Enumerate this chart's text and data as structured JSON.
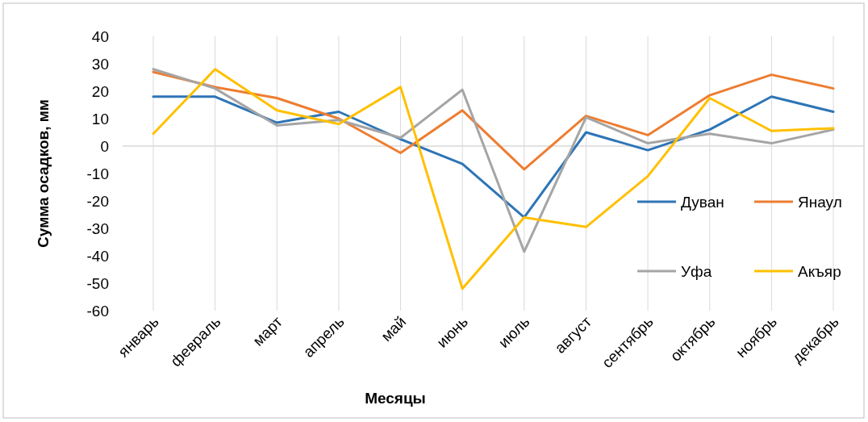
{
  "chart_data": {
    "type": "line",
    "xlabel": "Месяцы",
    "ylabel": "Сумма осадков, мм",
    "categories": [
      "январь",
      "февраль",
      "март",
      "апрель",
      "май",
      "июнь",
      "июль",
      "август",
      "сентябрь",
      "октябрь",
      "ноябрь",
      "декабрь"
    ],
    "series": [
      {
        "name": "Дуван",
        "color": "#2e75b6",
        "values": [
          18,
          18,
          8.5,
          12.5,
          2.5,
          -6.5,
          -26,
          5,
          -1.5,
          6,
          18,
          12.5
        ]
      },
      {
        "name": "Янаул",
        "color": "#ed7d31",
        "values": [
          27,
          21.5,
          17.5,
          10,
          -2.5,
          13,
          -8.5,
          11,
          4,
          18.5,
          26,
          21
        ]
      },
      {
        "name": "Уфа",
        "color": "#a5a5a5",
        "values": [
          28,
          21,
          7.5,
          9.5,
          3,
          20.5,
          -38.5,
          10.5,
          1,
          4.5,
          1,
          6
        ]
      },
      {
        "name": "Акъяр",
        "color": "#ffc000",
        "values": [
          4.5,
          28,
          13,
          8,
          21.5,
          -52,
          -26,
          -29.5,
          -11,
          17.5,
          5.5,
          6.5
        ]
      }
    ],
    "ylim": [
      -60,
      40
    ],
    "yticks": [
      -60,
      -50,
      -40,
      -30,
      -20,
      -10,
      0,
      10,
      20,
      30,
      40
    ],
    "grid": "x",
    "legend": "right",
    "marker": "none",
    "line_style": "solid"
  }
}
